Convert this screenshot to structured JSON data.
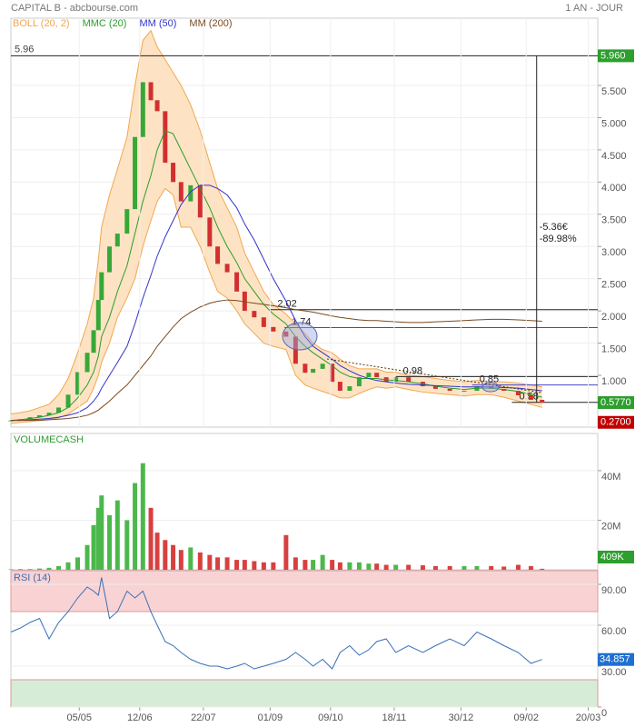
{
  "header": {
    "title": "CAPITAL B - abcbourse.com",
    "period": "1 AN - JOUR"
  },
  "chart_data": [
    {
      "type": "candlestick",
      "x": [
        0,
        6,
        12,
        18,
        24,
        30,
        36,
        42,
        48,
        52,
        55,
        57,
        62,
        67,
        73,
        78,
        83,
        88,
        92,
        97,
        102,
        107,
        113,
        119,
        125,
        130,
        136,
        142,
        147,
        153,
        159,
        165,
        173,
        179,
        185,
        190,
        196,
        202,
        207,
        213,
        219,
        225,
        230,
        236,
        242,
        250,
        259,
        267,
        276,
        285,
        293,
        302,
        310,
        319,
        327,
        334
      ],
      "xlim": [
        0,
        369
      ],
      "xticks": [
        {
          "value": 43,
          "label": "05/05"
        },
        {
          "value": 81,
          "label": "12/06"
        },
        {
          "value": 121,
          "label": "22/07"
        },
        {
          "value": 163,
          "label": "01/09"
        },
        {
          "value": 201,
          "label": "09/10"
        },
        {
          "value": 241,
          "label": "18/11"
        },
        {
          "value": 283,
          "label": "30/12"
        },
        {
          "value": 324,
          "label": "09/02"
        },
        {
          "value": 363,
          "label": "20/03"
        }
      ],
      "ylim": [
        0.196,
        6.544
      ],
      "yticks": [
        {
          "value": 1,
          "label": "1.000"
        },
        {
          "value": 1.5,
          "label": "1.500"
        },
        {
          "value": 2,
          "label": "2.000"
        },
        {
          "value": 2.5,
          "label": "2.500"
        },
        {
          "value": 3,
          "label": "3.000"
        },
        {
          "value": 3.5,
          "label": "3.500"
        },
        {
          "value": 4,
          "label": "4.000"
        },
        {
          "value": 4.5,
          "label": "4.500"
        },
        {
          "value": 5,
          "label": "5.000"
        },
        {
          "value": 5.5,
          "label": "5.500"
        }
      ],
      "close": [
        0.3,
        0.32,
        0.35,
        0.38,
        0.42,
        0.5,
        0.7,
        1.05,
        1.35,
        1.7,
        2.17,
        2.6,
        3.0,
        3.2,
        3.58,
        4.7,
        5.55,
        5.27,
        5.1,
        4.3,
        4.0,
        3.7,
        3.95,
        3.45,
        3.0,
        2.73,
        2.6,
        2.3,
        2.0,
        1.9,
        1.75,
        1.68,
        1.6,
        1.18,
        1.04,
        1.1,
        1.18,
        0.9,
        0.76,
        0.83,
        0.97,
        1.04,
        0.97,
        0.9,
        0.97,
        0.9,
        0.83,
        0.79,
        0.76,
        0.76,
        0.83,
        0.79,
        0.76,
        0.69,
        0.62,
        0.577
      ],
      "band": {
        "name": "BOLL (20, 2)",
        "color": "#f0a850",
        "fill": "#fde3c4",
        "upper": [
          0.4,
          0.42,
          0.45,
          0.5,
          0.55,
          0.7,
          0.95,
          1.35,
          1.8,
          2.2,
          2.8,
          3.3,
          3.8,
          4.2,
          4.7,
          5.5,
          6.2,
          6.35,
          6.1,
          5.9,
          5.7,
          5.5,
          5.2,
          4.8,
          4.3,
          3.9,
          3.6,
          3.3,
          2.9,
          2.6,
          2.3,
          2.1,
          1.95,
          1.8,
          1.65,
          1.5,
          1.4,
          1.35,
          1.25,
          1.15,
          1.1,
          1.1,
          1.1,
          1.05,
          1.05,
          1.0,
          0.98,
          0.95,
          0.92,
          0.9,
          0.92,
          0.9,
          0.9,
          0.88,
          0.85,
          0.82
        ],
        "lower": [
          0.25,
          0.27,
          0.28,
          0.3,
          0.32,
          0.34,
          0.4,
          0.5,
          0.6,
          0.8,
          1.0,
          1.2,
          1.5,
          1.9,
          2.2,
          2.5,
          3.0,
          3.4,
          3.7,
          3.9,
          3.8,
          3.3,
          3.3,
          3.0,
          2.6,
          2.3,
          2.2,
          2.0,
          1.8,
          1.65,
          1.5,
          1.45,
          1.4,
          1.0,
          0.85,
          0.8,
          0.75,
          0.7,
          0.65,
          0.65,
          0.72,
          0.78,
          0.82,
          0.8,
          0.82,
          0.78,
          0.74,
          0.72,
          0.7,
          0.68,
          0.7,
          0.7,
          0.66,
          0.6,
          0.55,
          0.5
        ]
      },
      "series": [
        {
          "name": "MMC (20)",
          "color": "#2a9d2a",
          "values": [
            0.3,
            0.31,
            0.33,
            0.35,
            0.38,
            0.42,
            0.5,
            0.65,
            0.85,
            1.05,
            1.3,
            1.6,
            1.9,
            2.3,
            2.7,
            3.2,
            3.7,
            4.1,
            4.5,
            4.8,
            4.75,
            4.5,
            4.2,
            3.9,
            3.6,
            3.3,
            3.0,
            2.75,
            2.5,
            2.3,
            2.1,
            1.95,
            1.8,
            1.6,
            1.45,
            1.35,
            1.25,
            1.15,
            1.05,
            0.98,
            0.95,
            0.95,
            0.95,
            0.93,
            0.92,
            0.9,
            0.87,
            0.83,
            0.8,
            0.78,
            0.8,
            0.8,
            0.78,
            0.75,
            0.7,
            0.66
          ]
        },
        {
          "name": "MM (50)",
          "color": "#3333cc",
          "values": [
            0.3,
            0.3,
            0.31,
            0.32,
            0.33,
            0.35,
            0.38,
            0.42,
            0.5,
            0.6,
            0.7,
            0.8,
            1.0,
            1.2,
            1.45,
            1.8,
            2.2,
            2.55,
            2.85,
            3.15,
            3.4,
            3.65,
            3.85,
            3.95,
            3.95,
            3.9,
            3.8,
            3.6,
            3.35,
            3.1,
            2.8,
            2.5,
            2.15,
            1.85,
            1.6,
            1.45,
            1.35,
            1.25,
            1.15,
            1.07,
            1.0,
            0.95,
            0.92,
            0.9,
            0.88,
            0.86,
            0.85,
            0.84,
            0.83,
            0.82,
            0.82,
            0.82,
            0.81,
            0.8,
            0.78,
            0.76
          ]
        },
        {
          "name": "MM (200)",
          "color": "#7a4a20",
          "values": [
            0.3,
            0.3,
            0.3,
            0.3,
            0.31,
            0.32,
            0.33,
            0.35,
            0.38,
            0.42,
            0.46,
            0.5,
            0.6,
            0.72,
            0.85,
            1.0,
            1.15,
            1.3,
            1.45,
            1.6,
            1.75,
            1.88,
            1.98,
            2.06,
            2.12,
            2.15,
            2.17,
            2.16,
            2.14,
            2.12,
            2.1,
            2.08,
            2.05,
            2.02,
            2.0,
            1.98,
            1.95,
            1.92,
            1.9,
            1.88,
            1.86,
            1.85,
            1.85,
            1.84,
            1.83,
            1.82,
            1.82,
            1.83,
            1.84,
            1.85,
            1.86,
            1.87,
            1.87,
            1.86,
            1.85,
            1.84
          ]
        }
      ],
      "high": {
        "value": 5.96,
        "label": "5.96"
      },
      "levels": [
        {
          "value": 2.02,
          "label": "2.02",
          "color": "#222",
          "from": 163
        },
        {
          "value": 1.74,
          "label": "1.74",
          "color": "#4444cc",
          "from": 172
        },
        {
          "value": 0.98,
          "label": "0.98",
          "color": "#222",
          "from": 242
        },
        {
          "value": 0.85,
          "label": "0.85",
          "color": "#4444cc",
          "from": 290
        },
        {
          "value": 0.58,
          "label": "0.58",
          "color": "#222",
          "from": 315
        }
      ],
      "price_labels": [
        {
          "value": 5.96,
          "label": "5.960",
          "color": "#2e9e2e"
        },
        {
          "value": 0.577,
          "label": "0.5770",
          "color": "#2e9e2e"
        },
        {
          "value": 0.27,
          "label": "0.2700",
          "color": "#c00000"
        }
      ],
      "change": {
        "amount": "-5.36€",
        "percent": "-89.98%"
      }
    },
    {
      "type": "bar",
      "title": "VOLUMECASH",
      "ylim": [
        0,
        55000000
      ],
      "yticks": [
        {
          "value": 20000000,
          "label": "20M"
        },
        {
          "value": 40000000,
          "label": "40M"
        }
      ],
      "values": [
        200000,
        300000,
        300000,
        500000,
        800000,
        1500000,
        3000000,
        5000000,
        10000000,
        18000000,
        25000000,
        30000000,
        22000000,
        28000000,
        20000000,
        35000000,
        43000000,
        25000000,
        15000000,
        12000000,
        10000000,
        8000000,
        9000000,
        7000000,
        6000000,
        5000000,
        5000000,
        4000000,
        4000000,
        3500000,
        3000000,
        3000000,
        14000000,
        5000000,
        4000000,
        4000000,
        6000000,
        4000000,
        3000000,
        3000000,
        3000000,
        2500000,
        2500000,
        2000000,
        2000000,
        2000000,
        1800000,
        1500000,
        1500000,
        1500000,
        1500000,
        1500000,
        1300000,
        2000000,
        1500000,
        409000
      ],
      "last_label": "409K"
    },
    {
      "type": "line",
      "title": "RSI (14)",
      "color": "#3b6fb6",
      "ylim": [
        0,
        100
      ],
      "yticks": [
        0,
        {
          "value": 30,
          "label": "30.00"
        },
        {
          "value": 60,
          "label": "60.00"
        },
        {
          "value": 90,
          "label": "90.00"
        }
      ],
      "zones": [
        {
          "from": 70,
          "to": 100,
          "color": "#f9d3d3"
        },
        {
          "from": 0,
          "to": 20,
          "color": "#d6ecd6"
        }
      ],
      "values": [
        55,
        58,
        62,
        65,
        50,
        62,
        70,
        80,
        88,
        85,
        82,
        95,
        65,
        70,
        85,
        80,
        85,
        70,
        60,
        48,
        45,
        40,
        35,
        32,
        30,
        30,
        28,
        30,
        32,
        28,
        30,
        32,
        35,
        40,
        35,
        30,
        35,
        28,
        40,
        45,
        38,
        42,
        48,
        50,
        40,
        45,
        40,
        45,
        50,
        45,
        55,
        50,
        45,
        40,
        32,
        34.857
      ],
      "last_label": "34.857"
    }
  ]
}
